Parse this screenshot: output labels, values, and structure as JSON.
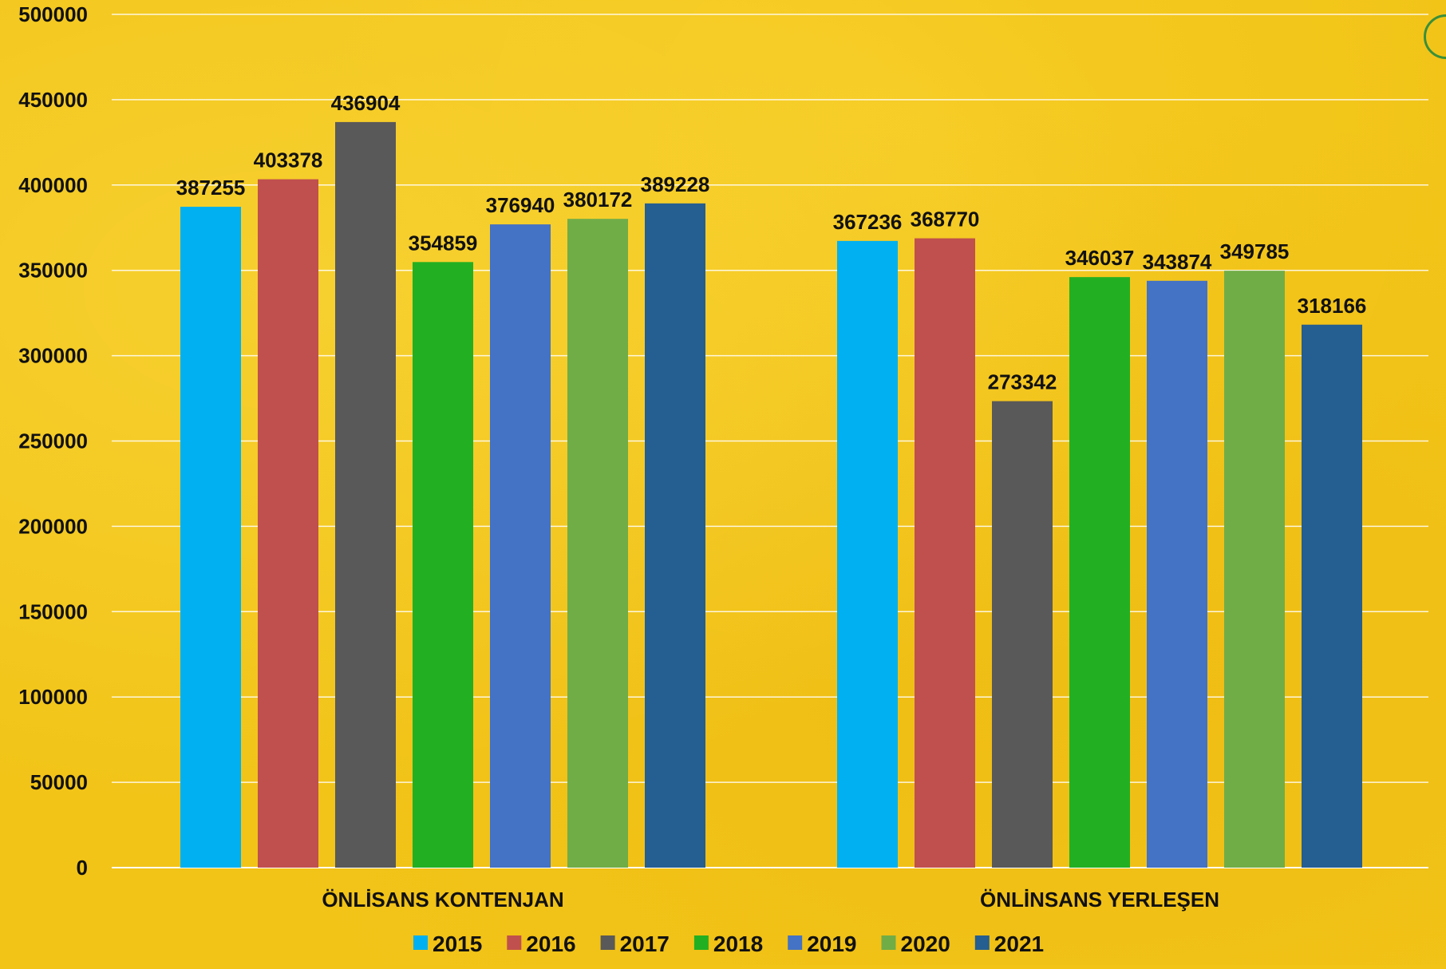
{
  "chart_data": {
    "type": "bar",
    "title": "",
    "xlabel": "",
    "ylabel": "",
    "categories": [
      "ÖNLİSANS KONTENJAN",
      "ÖNLİNSANS YERLEŞEN"
    ],
    "series": [
      {
        "name": "2015",
        "color": "#00b0f0",
        "values": [
          387255,
          367236
        ]
      },
      {
        "name": "2016",
        "color": "#c0504d",
        "values": [
          403378,
          368770
        ]
      },
      {
        "name": "2017",
        "color": "#595959",
        "values": [
          436904,
          273342
        ]
      },
      {
        "name": "2018",
        "color": "#22b022",
        "values": [
          354859,
          346037
        ]
      },
      {
        "name": "2019",
        "color": "#4472c4",
        "values": [
          376940,
          343874
        ]
      },
      {
        "name": "2020",
        "color": "#70ad47",
        "values": [
          380172,
          349785
        ]
      },
      {
        "name": "2021",
        "color": "#255e91",
        "values": [
          389228,
          318166
        ]
      }
    ],
    "ylim": [
      0,
      500000
    ],
    "yticks": [
      "0",
      "50000",
      "100000",
      "150000",
      "200000",
      "250000",
      "300000",
      "350000",
      "400000",
      "450000",
      "500000"
    ],
    "grid": true,
    "legend_position": "bottom"
  }
}
